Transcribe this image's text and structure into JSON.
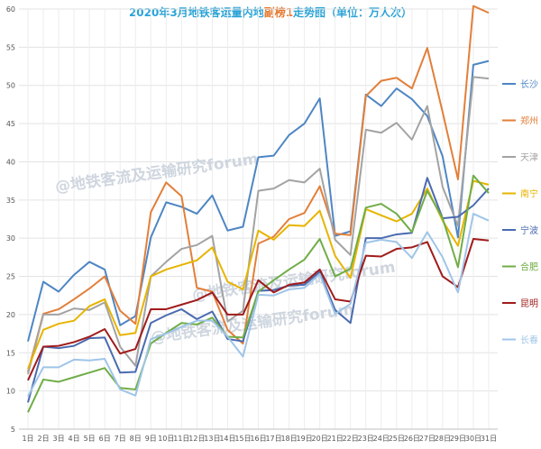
{
  "title": {
    "part1": "2020年3月地铁客运量内地",
    "part2": "副榜1",
    "part3": "走势图（单位：万人次）",
    "color_main": "#2aa3d6",
    "color_accent": "#e5772c"
  },
  "watermark": "@地铁客流及运输研究forum",
  "chart_data": {
    "type": "line",
    "title": "2020年3月地铁客运量内地副榜1走势图（单位：万人次）",
    "categories": [
      "1日",
      "2日",
      "3日",
      "4日",
      "5日",
      "6日",
      "7日",
      "8日",
      "9日",
      "10日",
      "11日",
      "12日",
      "13日",
      "14日",
      "15日",
      "16日",
      "17日",
      "18日",
      "19日",
      "20日",
      "21日",
      "22日",
      "23日",
      "24日",
      "25日",
      "26日",
      "27日",
      "28日",
      "29日",
      "30日",
      "31日"
    ],
    "ylim": [
      5,
      60
    ],
    "yticks": [
      5,
      10,
      15,
      20,
      25,
      30,
      35,
      40,
      45,
      50,
      55,
      60
    ],
    "grid": true,
    "legend_position": "right",
    "series": [
      {
        "name": "长沙",
        "color": "#4e86c4",
        "values": [
          16.5,
          24.3,
          23.0,
          25.2,
          26.9,
          25.9,
          18.6,
          19.8,
          30.1,
          34.7,
          34.1,
          33.2,
          35.6,
          31.0,
          31.5,
          40.6,
          40.8,
          43.5,
          45.0,
          48.3,
          30.3,
          30.9,
          48.8,
          47.3,
          49.6,
          48.2,
          46.0,
          40.7,
          30.1,
          52.7,
          53.2
        ]
      },
      {
        "name": "郑州",
        "color": "#e27f3a",
        "values": [
          12.5,
          20.1,
          20.7,
          22.0,
          23.4,
          25.0,
          20.5,
          18.8,
          33.4,
          37.3,
          35.5,
          23.5,
          23.0,
          18.0,
          16.2,
          29.3,
          30.2,
          32.5,
          33.3,
          36.8,
          30.6,
          30.4,
          48.6,
          50.6,
          51.0,
          49.6,
          54.9,
          46.5,
          37.7,
          60.4,
          59.5
        ]
      },
      {
        "name": "天津",
        "color": "#a3a3a3",
        "values": [
          12.2,
          20.0,
          20.0,
          20.8,
          20.6,
          21.6,
          15.8,
          13.3,
          25.0,
          26.9,
          28.6,
          29.1,
          30.3,
          19.1,
          20.5,
          36.2,
          36.5,
          37.6,
          37.3,
          39.1,
          29.8,
          27.8,
          44.2,
          43.8,
          45.1,
          42.9,
          47.3,
          36.7,
          31.6,
          51.1,
          50.9
        ]
      },
      {
        "name": "南宁",
        "color": "#e7b400",
        "values": [
          12.9,
          18.0,
          18.8,
          19.2,
          21.1,
          22.0,
          17.3,
          17.6,
          25.0,
          25.9,
          26.5,
          27.1,
          28.8,
          24.3,
          23.3,
          31.0,
          29.8,
          31.7,
          31.6,
          33.6,
          27.7,
          24.8,
          33.8,
          33.0,
          32.2,
          33.2,
          36.5,
          32.3,
          29.0,
          37.5,
          37.0
        ]
      },
      {
        "name": "宁波",
        "color": "#4a6bb0",
        "values": [
          8.5,
          15.8,
          15.6,
          15.9,
          16.9,
          17.0,
          12.4,
          12.5,
          18.9,
          19.9,
          20.7,
          19.4,
          20.4,
          16.8,
          16.5,
          23.1,
          23.2,
          23.8,
          23.9,
          25.6,
          20.6,
          18.9,
          30.0,
          30.0,
          30.5,
          30.7,
          37.9,
          32.6,
          32.8,
          34.3,
          36.5
        ]
      },
      {
        "name": "合肥",
        "color": "#70ad47",
        "values": [
          7.2,
          11.5,
          11.2,
          11.8,
          12.4,
          13.0,
          10.4,
          10.2,
          16.2,
          17.6,
          18.9,
          18.7,
          19.6,
          17.1,
          17.0,
          23.0,
          24.5,
          25.9,
          27.2,
          29.9,
          25.0,
          26.0,
          34.0,
          34.5,
          33.2,
          30.8,
          36.2,
          32.6,
          26.2,
          38.2,
          35.9
        ]
      },
      {
        "name": "昆明",
        "color": "#a01b1b",
        "values": [
          11.4,
          15.8,
          15.9,
          16.4,
          17.1,
          18.1,
          14.9,
          15.5,
          20.7,
          20.7,
          21.3,
          21.9,
          22.9,
          20.0,
          20.0,
          24.5,
          22.9,
          23.9,
          24.2,
          25.9,
          22.0,
          21.7,
          27.7,
          27.6,
          28.6,
          28.8,
          29.5,
          25.0,
          23.6,
          29.9,
          29.7
        ]
      },
      {
        "name": "长春",
        "color": "#9fc5e8",
        "values": [
          9.3,
          13.1,
          13.1,
          14.1,
          14.0,
          14.2,
          10.2,
          9.4,
          16.8,
          17.5,
          18.4,
          19.2,
          19.2,
          17.1,
          14.5,
          22.6,
          22.5,
          23.3,
          23.5,
          25.3,
          20.1,
          21.4,
          29.4,
          29.8,
          29.5,
          27.4,
          30.8,
          27.5,
          22.9,
          33.2,
          32.3
        ]
      }
    ]
  }
}
